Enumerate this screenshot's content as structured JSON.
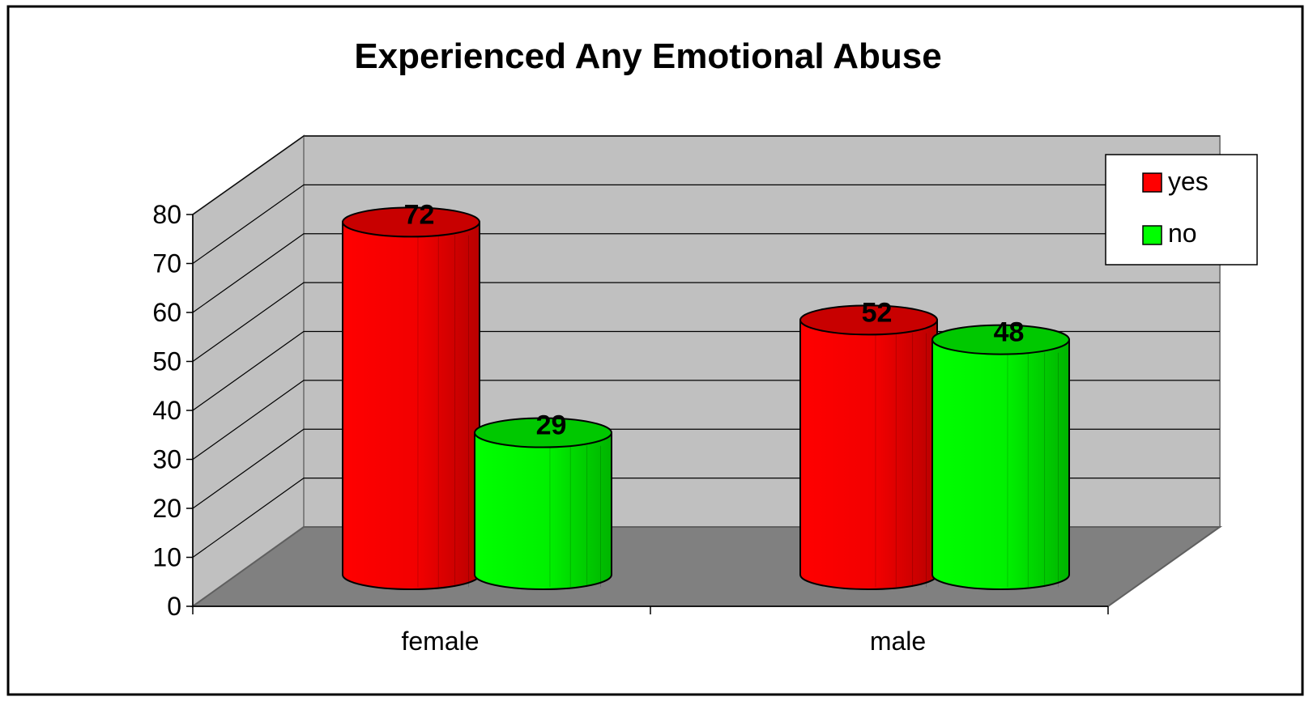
{
  "chart_data": {
    "type": "bar",
    "title": "Experienced Any Emotional Abuse",
    "categories": [
      "female",
      "male"
    ],
    "series": [
      {
        "name": "yes",
        "values": [
          72,
          52
        ],
        "color": "#ff0000"
      },
      {
        "name": "no",
        "values": [
          29,
          48
        ],
        "color": "#00ff00"
      }
    ],
    "ylim": [
      0,
      80
    ],
    "yticks": [
      0,
      10,
      20,
      30,
      40,
      50,
      60,
      70,
      80
    ],
    "grid": true,
    "legend": "top-right",
    "style": "3d-cylinder",
    "colors": {
      "back_wall": "#c0c0c0",
      "floor": "#808080"
    }
  }
}
